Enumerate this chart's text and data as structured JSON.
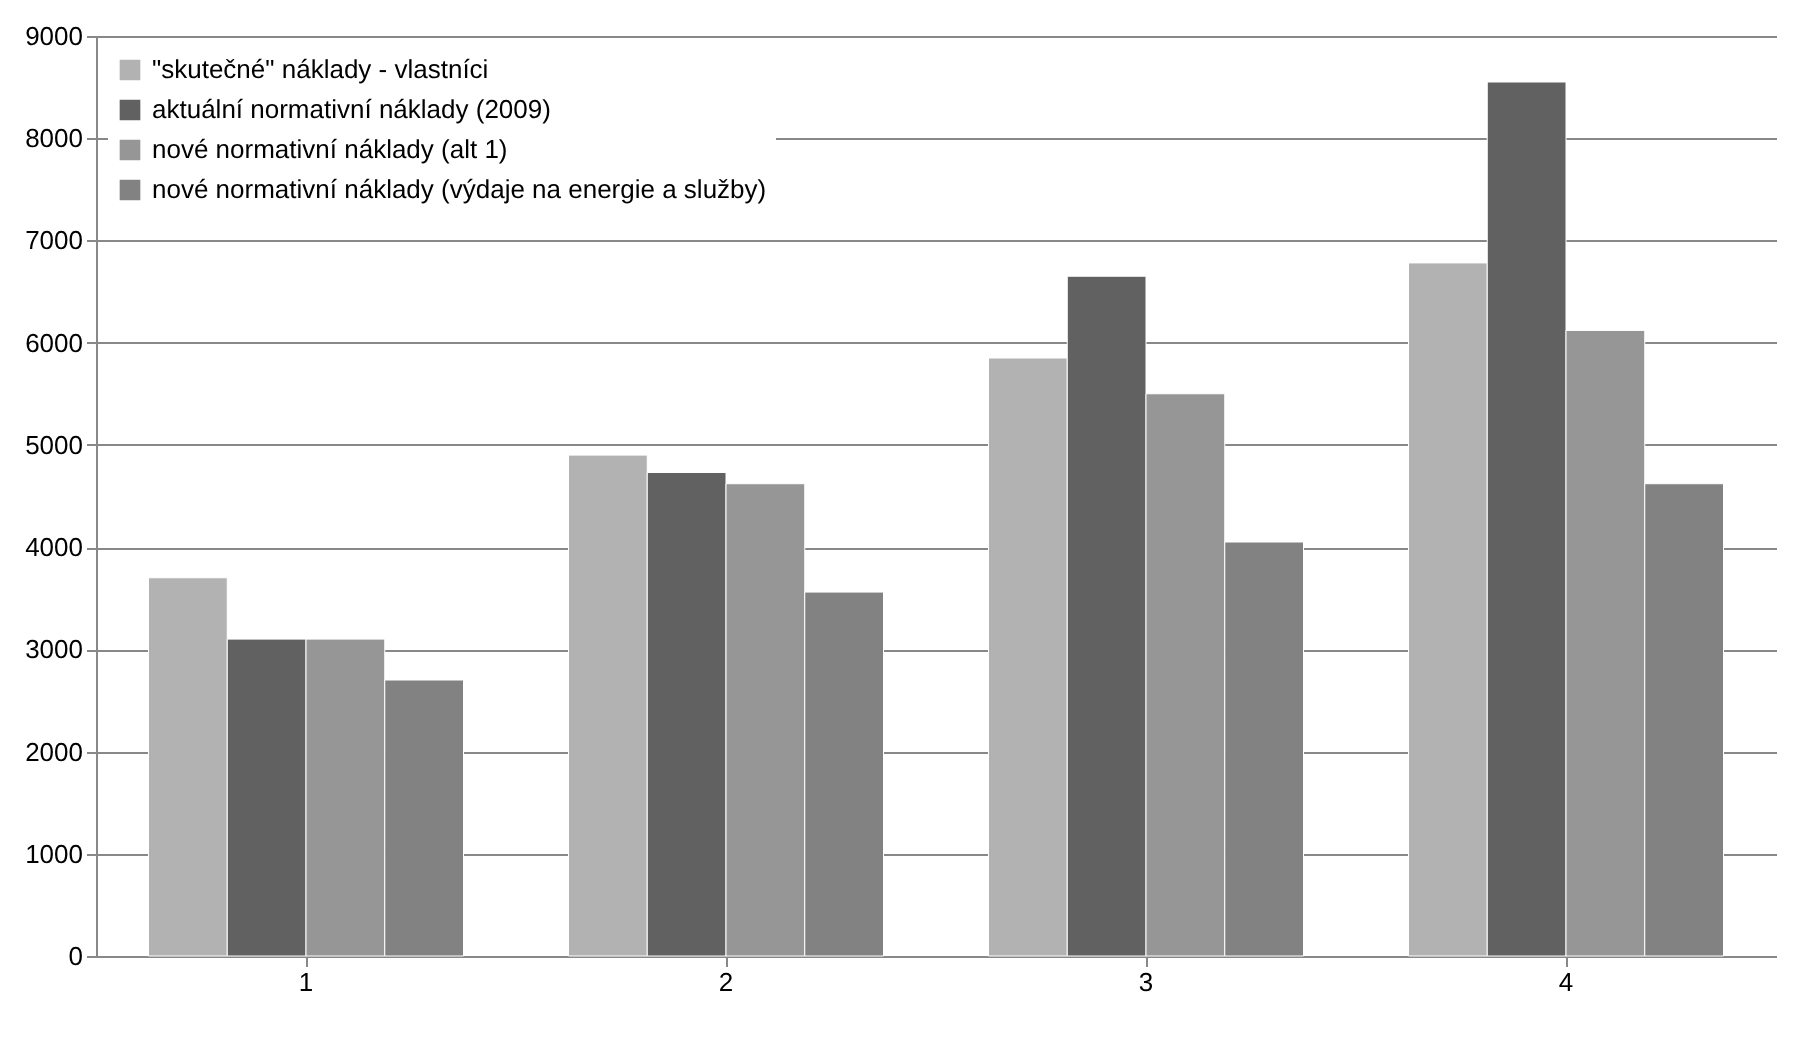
{
  "chart_data": {
    "type": "bar",
    "categories": [
      "1",
      "2",
      "3",
      "4"
    ],
    "series": [
      {
        "name": "\"skutečné\" náklady - vlastníci",
        "color": "#b2b2b2",
        "values": [
          3700,
          4900,
          5850,
          6780
        ]
      },
      {
        "name": "aktuální normativní náklady (2009)",
        "color": "#616161",
        "values": [
          3100,
          4730,
          6650,
          8550
        ]
      },
      {
        "name": "nové normativní náklady (alt 1)",
        "color": "#969696",
        "values": [
          3100,
          4620,
          5500,
          6120
        ]
      },
      {
        "name": "nové normativní náklady (výdaje na energie a služby)",
        "color": "#828282",
        "values": [
          2700,
          3560,
          4050,
          4620
        ]
      }
    ],
    "ylim": [
      0,
      9000
    ],
    "yticks": [
      0,
      1000,
      2000,
      3000,
      4000,
      5000,
      6000,
      7000,
      8000,
      9000
    ],
    "grid": "y",
    "legend": "top left"
  }
}
